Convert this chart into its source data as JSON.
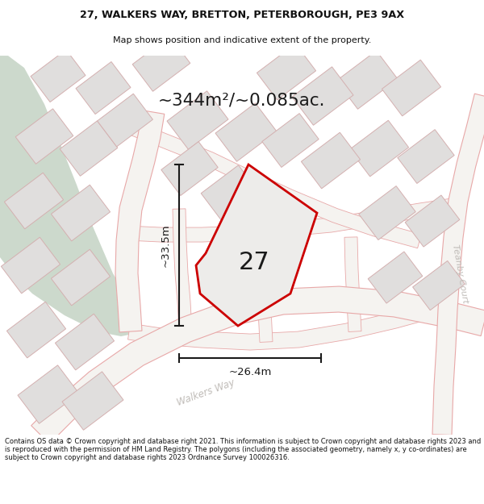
{
  "title_line1": "27, WALKERS WAY, BRETTON, PETERBOROUGH, PE3 9AX",
  "title_line2": "Map shows position and indicative extent of the property.",
  "area_text": "~344m²/~0.085ac.",
  "width_label": "~26.4m",
  "height_label": "~33.5m",
  "number_label": "27",
  "footer_text": "Contains OS data © Crown copyright and database right 2021. This information is subject to Crown copyright and database rights 2023 and is reproduced with the permission of HM Land Registry. The polygons (including the associated geometry, namely x, y co-ordinates) are subject to Crown copyright and database rights 2023 Ordnance Survey 100026316.",
  "bg_color": "#edecea",
  "green_color": "#ccd9cc",
  "road_fill": "#f5f3f0",
  "road_edge": "#e8a8a8",
  "block_fill": "#e0dedd",
  "block_edge": "#d4b0b0",
  "plot_stroke": "#cc0000",
  "plot_fill": "#edecea",
  "dim_color": "#1a1a1a",
  "text_dark": "#1a1a1a",
  "road_label_color": "#c0bcb8",
  "title_color": "#111111",
  "footer_color": "#111111",
  "walkers_way_label": "Walkers Way",
  "teanby_court_label": "Teanby Court"
}
